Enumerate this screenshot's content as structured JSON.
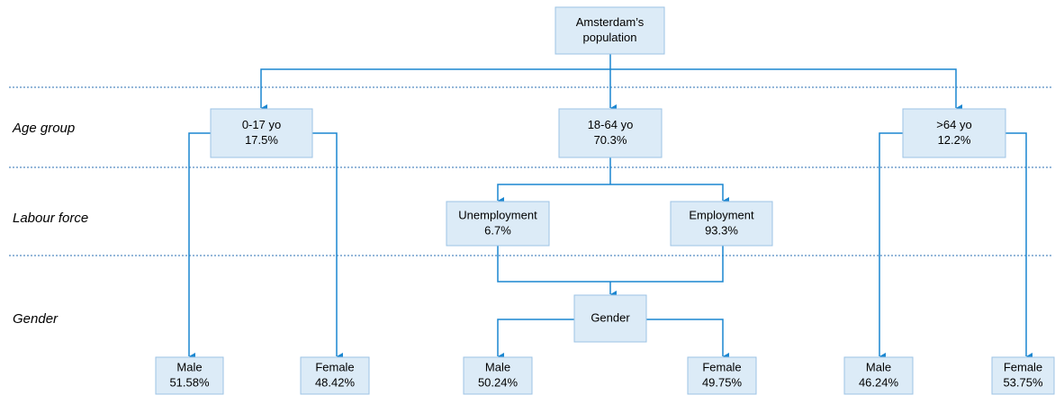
{
  "rows": [
    "Age group",
    "Labour force",
    "Gender"
  ],
  "nodes": [
    {
      "lines": [
        "Amsterdam’s",
        "population"
      ]
    },
    {
      "lines": [
        "0-17 yo",
        "17.5%"
      ]
    },
    {
      "lines": [
        "18-64 yo",
        "70.3%"
      ]
    },
    {
      "lines": [
        ">64 yo",
        "12.2%"
      ]
    },
    {
      "lines": [
        "Unemployment",
        "6.7%"
      ]
    },
    {
      "lines": [
        "Employment",
        "93.3%"
      ]
    },
    {
      "lines": [
        "Gender"
      ]
    },
    {
      "lines": [
        "Male",
        "51.58%"
      ]
    },
    {
      "lines": [
        "Female",
        "48.42%"
      ]
    },
    {
      "lines": [
        "Male",
        "50.24%"
      ]
    },
    {
      "lines": [
        "Female",
        "49.75%"
      ]
    },
    {
      "lines": [
        "Male",
        "46.24%"
      ]
    },
    {
      "lines": [
        "Female",
        "53.75%"
      ]
    }
  ]
}
